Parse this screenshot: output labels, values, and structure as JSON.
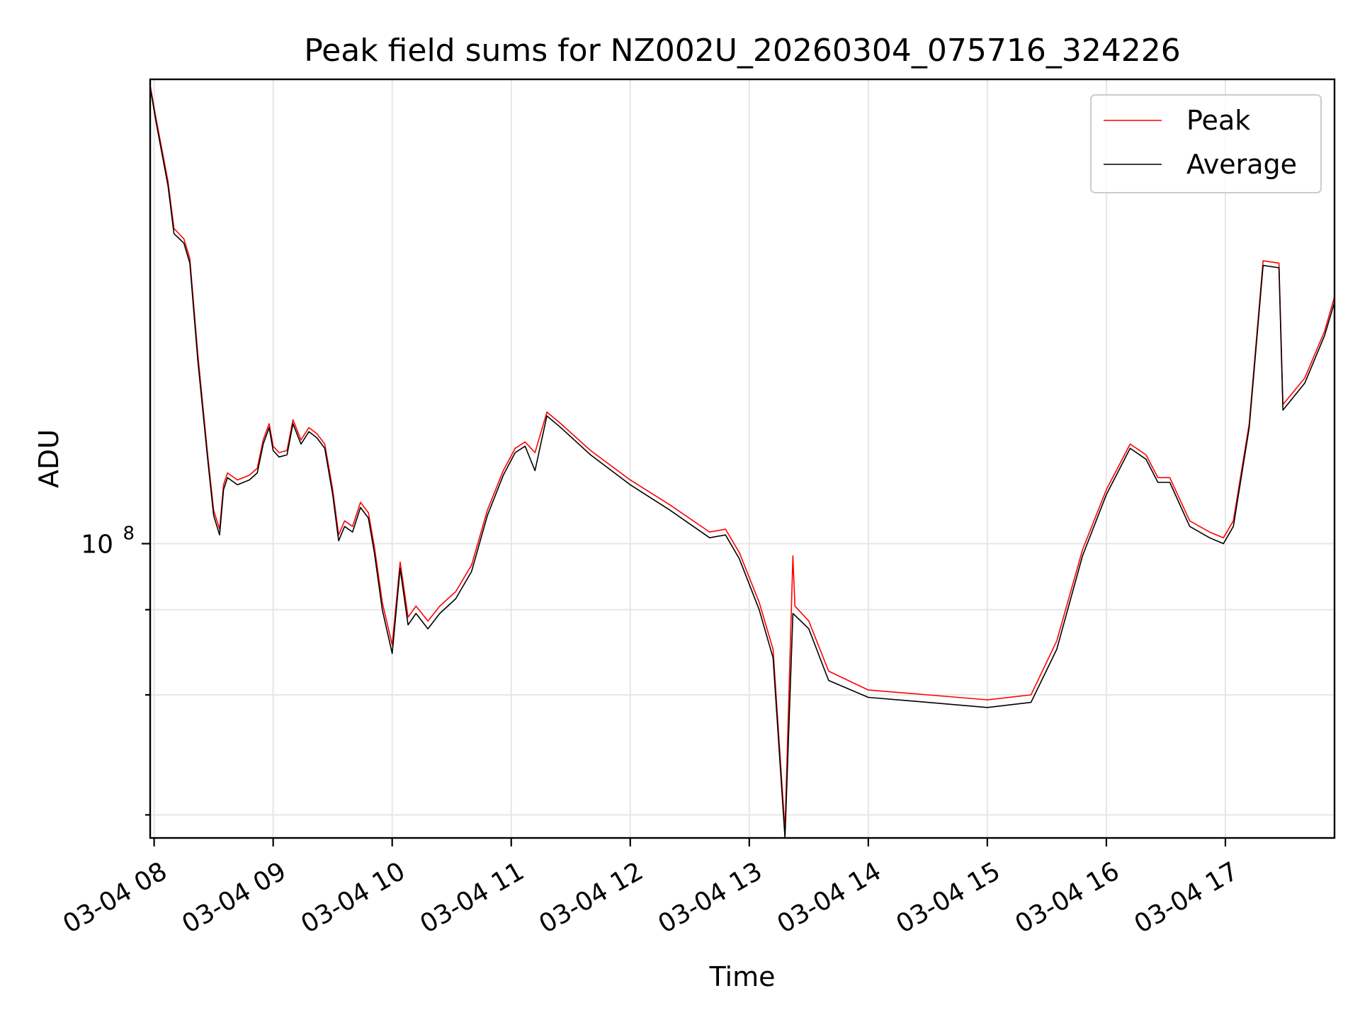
{
  "chart_data": {
    "type": "line",
    "title": "Peak field sums for NZ002U_20260304_075716_324226",
    "xlabel": "Time",
    "ylabel": "ADU",
    "yscale": "log",
    "ylim": [
      37000000,
      480000000
    ],
    "xlim": [
      "03-04 07:58",
      "03-04 17:55"
    ],
    "grid": true,
    "legend_position": "top-right",
    "x_ticks": [
      "03-04 08",
      "03-04 09",
      "03-04 10",
      "03-04 11",
      "03-04 12",
      "03-04 13",
      "03-04 14",
      "03-04 15",
      "03-04 16",
      "03-04 17"
    ],
    "y_major_ticks": [
      {
        "value": 100000000,
        "label_base": "10",
        "label_exp": "8"
      }
    ],
    "y_minor_ticks": [
      40000000,
      60000000,
      80000000
    ],
    "series": [
      {
        "name": "Peak",
        "color": "#ff0000",
        "points": [
          [
            "03-04 07:58",
            470000000
          ],
          [
            "03-04 08:01",
            420000000
          ],
          [
            "03-04 08:07",
            340000000
          ],
          [
            "03-04 08:10",
            290000000
          ],
          [
            "03-04 08:15",
            280000000
          ],
          [
            "03-04 08:18",
            262000000
          ],
          [
            "03-04 08:22",
            190000000
          ],
          [
            "03-04 08:27",
            135000000
          ],
          [
            "03-04 08:30",
            112000000
          ],
          [
            "03-04 08:33",
            105000000
          ],
          [
            "03-04 08:35",
            122000000
          ],
          [
            "03-04 08:37",
            127000000
          ],
          [
            "03-04 08:42",
            124000000
          ],
          [
            "03-04 08:48",
            126000000
          ],
          [
            "03-04 08:52",
            129000000
          ],
          [
            "03-04 08:55",
            142000000
          ],
          [
            "03-04 08:58",
            150000000
          ],
          [
            "03-04 09:00",
            139000000
          ],
          [
            "03-04 09:03",
            136000000
          ],
          [
            "03-04 09:07",
            137000000
          ],
          [
            "03-04 09:10",
            152000000
          ],
          [
            "03-04 09:14",
            142000000
          ],
          [
            "03-04 09:18",
            148000000
          ],
          [
            "03-04 09:22",
            145000000
          ],
          [
            "03-04 09:26",
            140000000
          ],
          [
            "03-04 09:30",
            120000000
          ],
          [
            "03-04 09:33",
            103000000
          ],
          [
            "03-04 09:36",
            108000000
          ],
          [
            "03-04 09:40",
            106000000
          ],
          [
            "03-04 09:44",
            115000000
          ],
          [
            "03-04 09:48",
            111000000
          ],
          [
            "03-04 09:51",
            99000000
          ],
          [
            "03-04 09:55",
            82000000
          ],
          [
            "03-04 10:00",
            71000000
          ],
          [
            "03-04 10:04",
            94000000
          ],
          [
            "03-04 10:08",
            78000000
          ],
          [
            "03-04 10:12",
            81000000
          ],
          [
            "03-04 10:18",
            77000000
          ],
          [
            "03-04 10:24",
            81000000
          ],
          [
            "03-04 10:32",
            85000000
          ],
          [
            "03-04 10:40",
            93000000
          ],
          [
            "03-04 10:48",
            112000000
          ],
          [
            "03-04 10:56",
            128000000
          ],
          [
            "03-04 11:02",
            138000000
          ],
          [
            "03-04 11:07",
            141000000
          ],
          [
            "03-04 11:12",
            136000000
          ],
          [
            "03-04 11:18",
            156000000
          ],
          [
            "03-04 11:25",
            150000000
          ],
          [
            "03-04 11:40",
            137000000
          ],
          [
            "03-04 12:00",
            124000000
          ],
          [
            "03-04 12:20",
            114000000
          ],
          [
            "03-04 12:40",
            104000000
          ],
          [
            "03-04 12:48",
            105000000
          ],
          [
            "03-04 12:55",
            97000000
          ],
          [
            "03-04 13:05",
            82000000
          ],
          [
            "03-04 13:12",
            70000000
          ],
          [
            "03-04 13:18",
            38000000
          ],
          [
            "03-04 13:22",
            96000000
          ],
          [
            "03-04 13:23",
            81000000
          ],
          [
            "03-04 13:30",
            77000000
          ],
          [
            "03-04 13:40",
            65000000
          ],
          [
            "03-04 14:00",
            61000000
          ],
          [
            "03-04 14:30",
            60000000
          ],
          [
            "03-04 15:00",
            59000000
          ],
          [
            "03-04 15:22",
            60000000
          ],
          [
            "03-04 15:35",
            72000000
          ],
          [
            "03-04 15:48",
            98000000
          ],
          [
            "03-04 16:00",
            120000000
          ],
          [
            "03-04 16:12",
            140000000
          ],
          [
            "03-04 16:20",
            135000000
          ],
          [
            "03-04 16:26",
            125000000
          ],
          [
            "03-04 16:32",
            125000000
          ],
          [
            "03-04 16:42",
            108000000
          ],
          [
            "03-04 16:52",
            104000000
          ],
          [
            "03-04 16:59",
            102000000
          ],
          [
            "03-04 17:04",
            108000000
          ],
          [
            "03-04 17:12",
            150000000
          ],
          [
            "03-04 17:19",
            260000000
          ],
          [
            "03-04 17:27",
            258000000
          ],
          [
            "03-04 17:29",
            160000000
          ],
          [
            "03-04 17:40",
            175000000
          ],
          [
            "03-04 17:50",
            205000000
          ],
          [
            "03-04 17:55",
            230000000
          ]
        ]
      },
      {
        "name": "Average",
        "color": "#000000",
        "points": [
          [
            "03-04 07:58",
            468000000
          ],
          [
            "03-04 08:01",
            415000000
          ],
          [
            "03-04 08:07",
            335000000
          ],
          [
            "03-04 08:10",
            285000000
          ],
          [
            "03-04 08:15",
            276000000
          ],
          [
            "03-04 08:18",
            258000000
          ],
          [
            "03-04 08:22",
            186000000
          ],
          [
            "03-04 08:27",
            133000000
          ],
          [
            "03-04 08:30",
            110000000
          ],
          [
            "03-04 08:33",
            103000000
          ],
          [
            "03-04 08:35",
            120000000
          ],
          [
            "03-04 08:37",
            125000000
          ],
          [
            "03-04 08:42",
            122000000
          ],
          [
            "03-04 08:48",
            124000000
          ],
          [
            "03-04 08:52",
            127000000
          ],
          [
            "03-04 08:55",
            140000000
          ],
          [
            "03-04 08:58",
            148000000
          ],
          [
            "03-04 09:00",
            137000000
          ],
          [
            "03-04 09:03",
            134000000
          ],
          [
            "03-04 09:07",
            135000000
          ],
          [
            "03-04 09:10",
            150000000
          ],
          [
            "03-04 09:14",
            140000000
          ],
          [
            "03-04 09:18",
            146000000
          ],
          [
            "03-04 09:22",
            143000000
          ],
          [
            "03-04 09:26",
            138000000
          ],
          [
            "03-04 09:30",
            118000000
          ],
          [
            "03-04 09:33",
            101000000
          ],
          [
            "03-04 09:36",
            106000000
          ],
          [
            "03-04 09:40",
            104000000
          ],
          [
            "03-04 09:44",
            113000000
          ],
          [
            "03-04 09:48",
            109000000
          ],
          [
            "03-04 09:51",
            97000000
          ],
          [
            "03-04 09:55",
            80000000
          ],
          [
            "03-04 10:00",
            69000000
          ],
          [
            "03-04 10:04",
            92000000
          ],
          [
            "03-04 10:08",
            76000000
          ],
          [
            "03-04 10:12",
            79000000
          ],
          [
            "03-04 10:18",
            75000000
          ],
          [
            "03-04 10:24",
            79000000
          ],
          [
            "03-04 10:32",
            83000000
          ],
          [
            "03-04 10:40",
            91000000
          ],
          [
            "03-04 10:48",
            110000000
          ],
          [
            "03-04 10:56",
            126000000
          ],
          [
            "03-04 11:02",
            136000000
          ],
          [
            "03-04 11:07",
            139000000
          ],
          [
            "03-04 11:12",
            128000000
          ],
          [
            "03-04 11:18",
            154000000
          ],
          [
            "03-04 11:25",
            148000000
          ],
          [
            "03-04 11:40",
            135000000
          ],
          [
            "03-04 12:00",
            122000000
          ],
          [
            "03-04 12:20",
            112000000
          ],
          [
            "03-04 12:40",
            102000000
          ],
          [
            "03-04 12:48",
            103000000
          ],
          [
            "03-04 12:55",
            95000000
          ],
          [
            "03-04 13:05",
            80000000
          ],
          [
            "03-04 13:12",
            68000000
          ],
          [
            "03-04 13:18",
            37000000
          ],
          [
            "03-04 13:22",
            79000000
          ],
          [
            "03-04 13:30",
            75000000
          ],
          [
            "03-04 13:40",
            63000000
          ],
          [
            "03-04 14:00",
            59500000
          ],
          [
            "03-04 14:30",
            58500000
          ],
          [
            "03-04 15:00",
            57500000
          ],
          [
            "03-04 15:22",
            58500000
          ],
          [
            "03-04 15:35",
            70000000
          ],
          [
            "03-04 15:48",
            96000000
          ],
          [
            "03-04 16:00",
            118000000
          ],
          [
            "03-04 16:12",
            138000000
          ],
          [
            "03-04 16:20",
            133000000
          ],
          [
            "03-04 16:26",
            123000000
          ],
          [
            "03-04 16:32",
            123000000
          ],
          [
            "03-04 16:42",
            106000000
          ],
          [
            "03-04 16:52",
            102000000
          ],
          [
            "03-04 16:59",
            100000000
          ],
          [
            "03-04 17:04",
            106000000
          ],
          [
            "03-04 17:12",
            148000000
          ],
          [
            "03-04 17:19",
            256000000
          ],
          [
            "03-04 17:27",
            254000000
          ],
          [
            "03-04 17:29",
            157000000
          ],
          [
            "03-04 17:40",
            172000000
          ],
          [
            "03-04 17:50",
            202000000
          ],
          [
            "03-04 17:55",
            226000000
          ]
        ]
      }
    ]
  }
}
